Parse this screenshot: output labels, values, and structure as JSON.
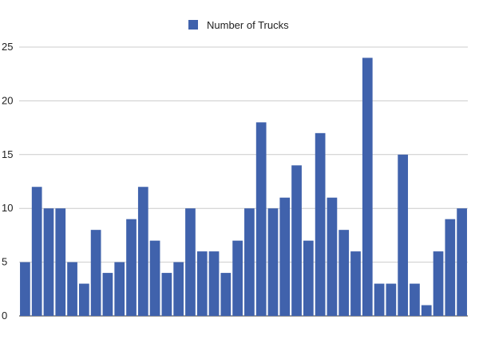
{
  "chart_data": {
    "type": "bar",
    "legend": {
      "position": "top"
    },
    "series": [
      {
        "name": "Number of Trucks",
        "color": "#4062ac",
        "values": [
          5,
          12,
          10,
          10,
          5,
          3,
          8,
          4,
          5,
          9,
          12,
          7,
          4,
          5,
          10,
          6,
          6,
          4,
          7,
          10,
          18,
          10,
          11,
          14,
          7,
          17,
          11,
          8,
          6,
          24,
          3,
          3,
          15,
          3,
          1,
          6,
          9,
          10
        ]
      }
    ],
    "y_ticks": [
      0,
      5,
      10,
      15,
      20,
      25
    ],
    "ylim": [
      0,
      25
    ],
    "grid": true,
    "gridline_color": "#cccccc"
  }
}
